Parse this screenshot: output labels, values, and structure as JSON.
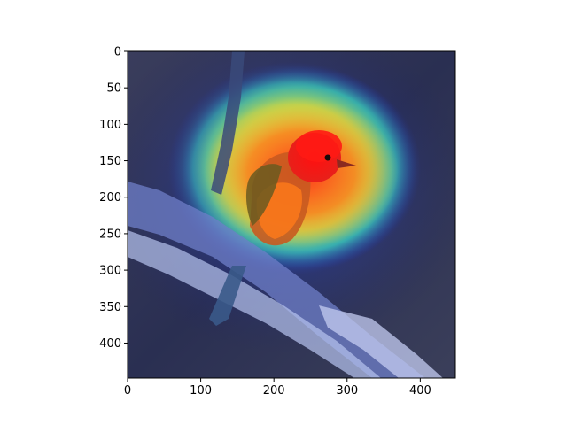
{
  "figure": {
    "image_description_icon": "bird-heatmap-image",
    "x_axis": {
      "range": [
        0,
        448
      ],
      "ticks": [
        {
          "value": 0,
          "label": "0"
        },
        {
          "value": 100,
          "label": "100"
        },
        {
          "value": 200,
          "label": "200"
        },
        {
          "value": 300,
          "label": "300"
        },
        {
          "value": 400,
          "label": "400"
        }
      ]
    },
    "y_axis": {
      "range": [
        0,
        448
      ],
      "inverted": true,
      "ticks": [
        {
          "value": 0,
          "label": "0"
        },
        {
          "value": 50,
          "label": "50"
        },
        {
          "value": 100,
          "label": "100"
        },
        {
          "value": 150,
          "label": "150"
        },
        {
          "value": 200,
          "label": "200"
        },
        {
          "value": 250,
          "label": "250"
        },
        {
          "value": 300,
          "label": "300"
        },
        {
          "value": 350,
          "label": "350"
        },
        {
          "value": 400,
          "label": "400"
        }
      ]
    },
    "colors": {
      "background": "#2a2f52",
      "heat_hot": "#ff2a1a",
      "heat_warm": "#f0e23a",
      "heat_cool": "#3bd6c0",
      "heat_cold": "#2233cc",
      "bird_red": "#e8201a",
      "branch": "#8a9ad8"
    }
  }
}
